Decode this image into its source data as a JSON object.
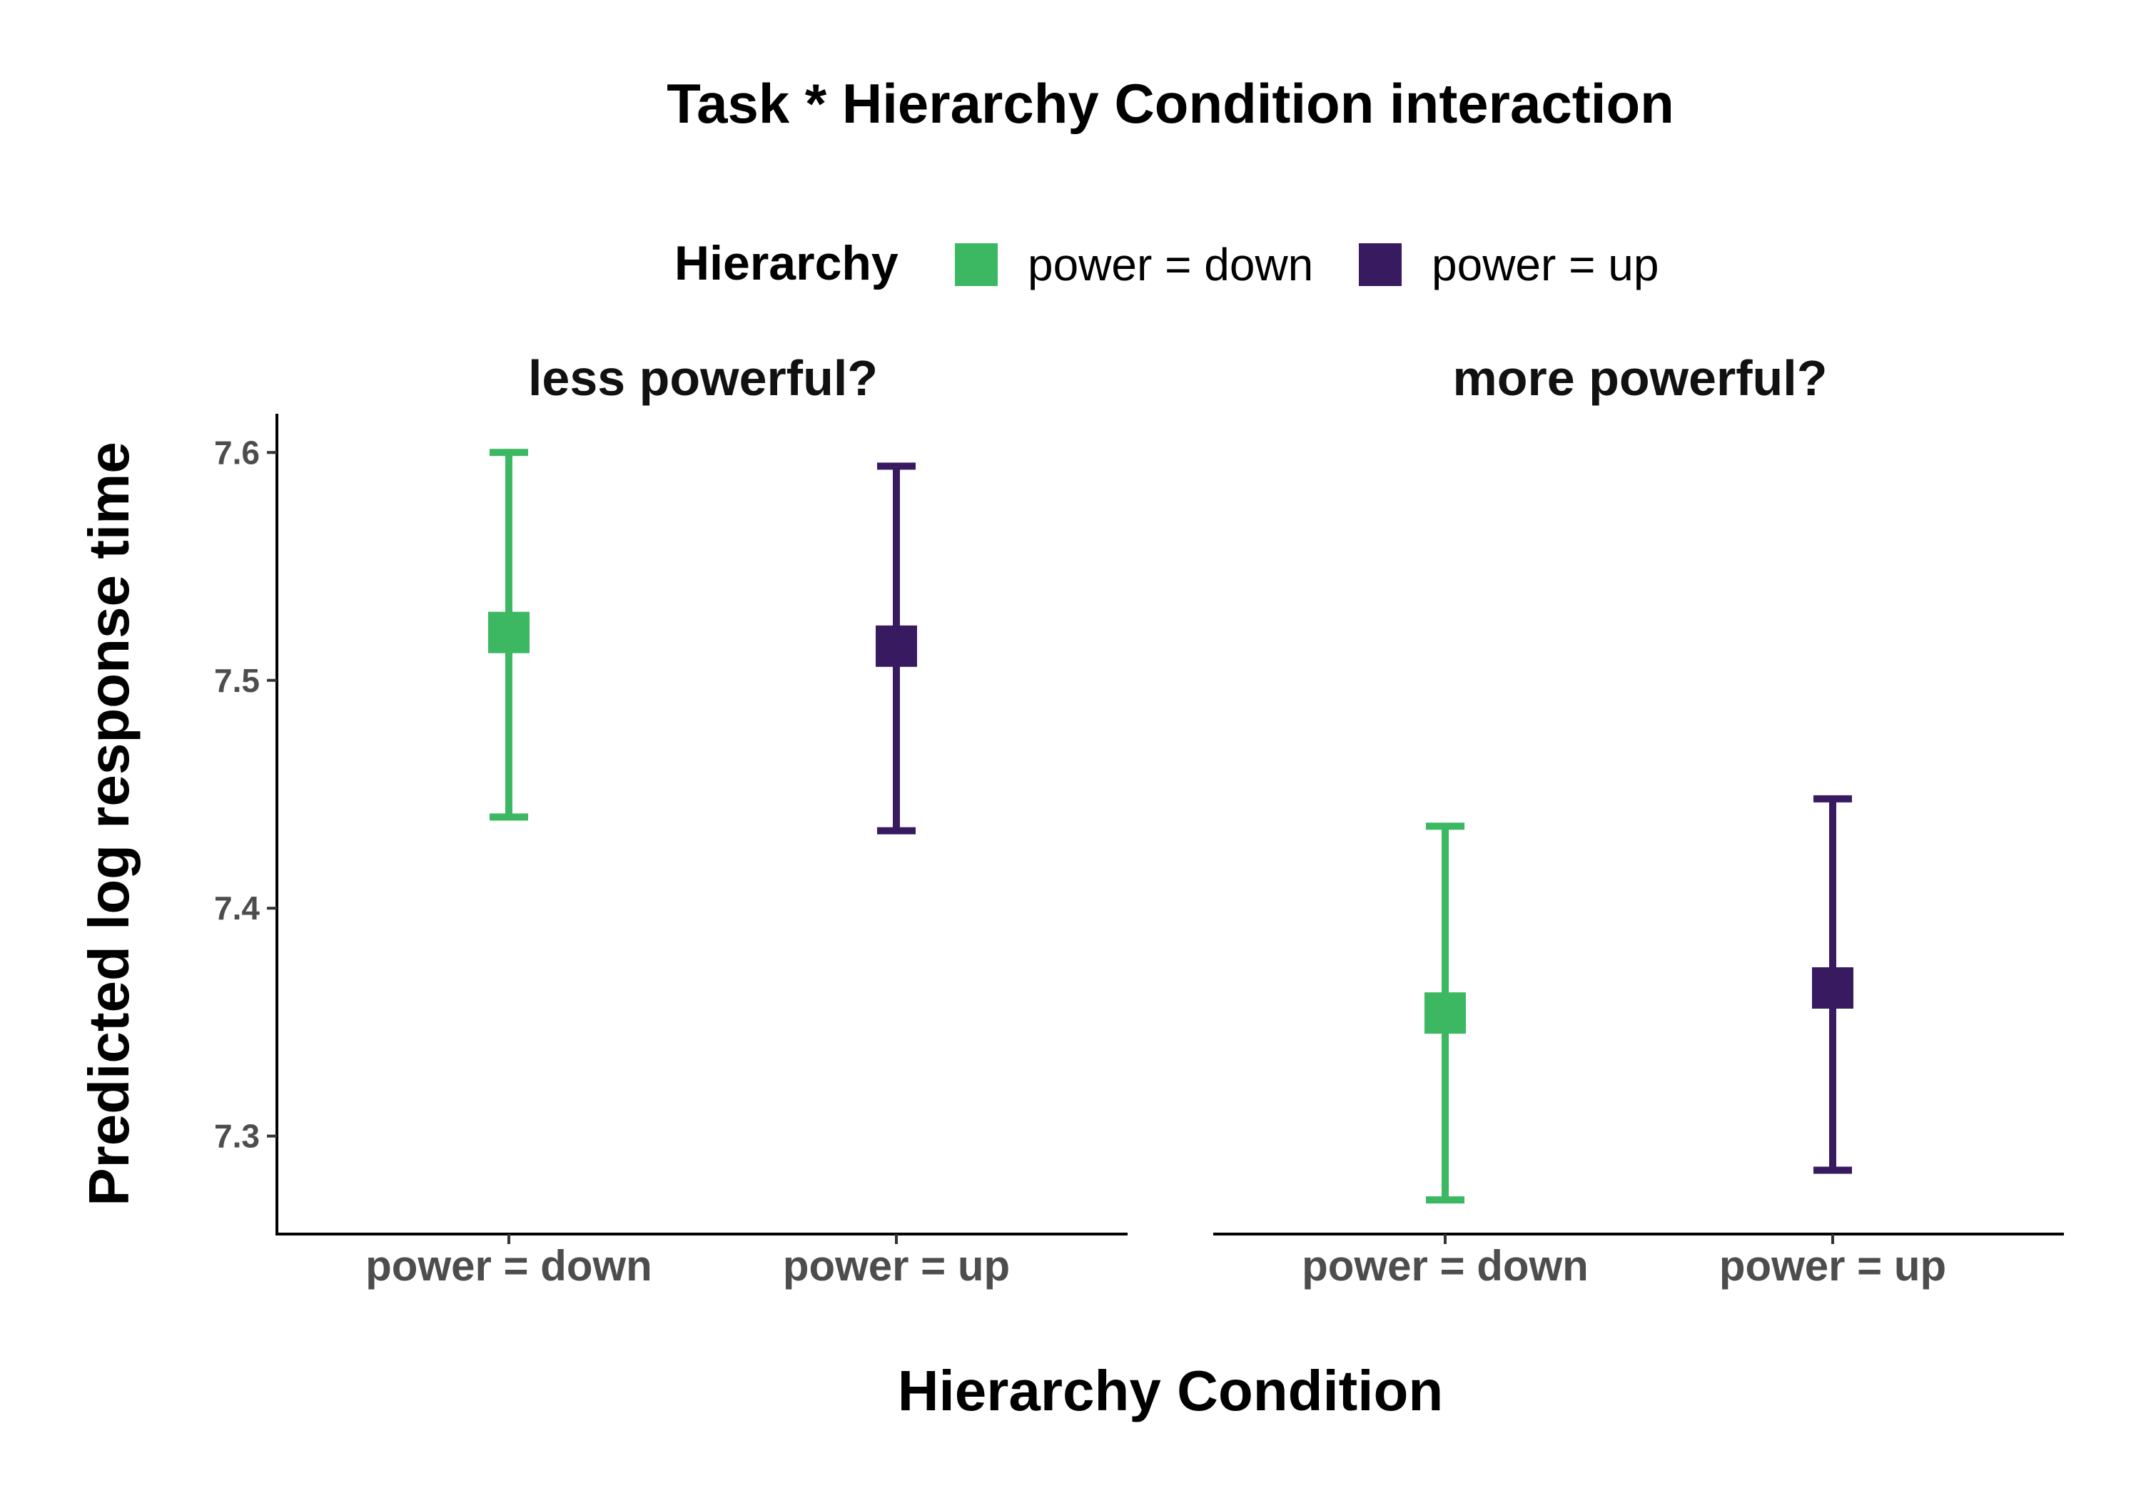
{
  "chart_data": {
    "type": "errorbar",
    "title": "Task * Hierarchy Condition interaction",
    "xlabel": "Hierarchy Condition",
    "ylabel": "Predicted log response time",
    "ylim": [
      7.257,
      7.617
    ],
    "yticks": [
      7.3,
      7.4,
      7.5,
      7.6
    ],
    "categories": [
      "power = down",
      "power = up"
    ],
    "legend": {
      "title": "Hierarchy",
      "placement": "top",
      "entries": [
        {
          "label": "power = down",
          "color": "#3cb862"
        },
        {
          "label": "power = up",
          "color": "#381a61"
        }
      ]
    },
    "facets": [
      {
        "label": "less powerful?",
        "points": [
          {
            "category": "power = down",
            "y": 7.521,
            "lower": 7.44,
            "upper": 7.6
          },
          {
            "category": "power = up",
            "y": 7.515,
            "lower": 7.434,
            "upper": 7.594
          }
        ]
      },
      {
        "label": "more powerful?",
        "points": [
          {
            "category": "power = down",
            "y": 7.354,
            "lower": 7.272,
            "upper": 7.436
          },
          {
            "category": "power = up",
            "y": 7.365,
            "lower": 7.285,
            "upper": 7.448
          }
        ]
      }
    ]
  }
}
